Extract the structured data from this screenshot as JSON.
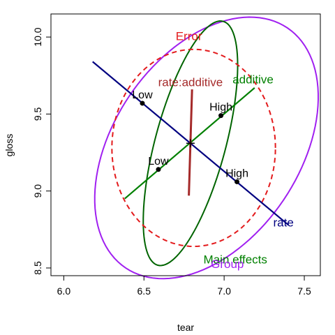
{
  "chart_data": {
    "type": "scatter",
    "title": "",
    "xlabel": "tear",
    "ylabel": "gloss",
    "xlim": [
      5.92,
      7.6
    ],
    "ylim": [
      8.45,
      10.15
    ],
    "xticks": [
      6.0,
      6.5,
      7.0,
      7.5
    ],
    "xtick_labels": [
      "6.0",
      "6.5",
      "7.0",
      "7.5"
    ],
    "yticks": [
      8.5,
      9.0,
      9.5,
      10.0
    ],
    "ytick_labels": [
      "8.5",
      "9.0",
      "9.5",
      "10.0"
    ],
    "grid": false,
    "center": {
      "x": 6.79,
      "y": 9.31
    },
    "ellipses": [
      {
        "name": "Group",
        "color": "#a020f0",
        "dash": false,
        "cx": 6.89,
        "cy": 9.28,
        "rx": 0.58,
        "ry": 0.94,
        "angle_deg": -34
      },
      {
        "name": "Main effects",
        "color": "#006400",
        "dash": false,
        "cx": 6.79,
        "cy": 9.31,
        "rx": 0.22,
        "ry": 0.82,
        "angle_deg": -15
      },
      {
        "name": "Error",
        "color": "#e31a1c",
        "dash": true,
        "cx": 6.81,
        "cy": 9.28,
        "rx": 0.51,
        "ry": 0.64,
        "angle_deg": 0
      }
    ],
    "effect_lines": [
      {
        "name": "rate",
        "color": "#000080",
        "from": [
          6.18,
          9.84
        ],
        "to": [
          7.4,
          8.78
        ]
      },
      {
        "name": "additive",
        "color": "#008000",
        "from": [
          6.38,
          8.95
        ],
        "to": [
          7.19,
          9.67
        ]
      },
      {
        "name": "rate:additive",
        "color": "#a52a2a",
        "from": [
          6.78,
          8.97
        ],
        "to": [
          6.8,
          9.66
        ]
      }
    ],
    "points": [
      {
        "label": "Low",
        "series": "rate",
        "x": 6.49,
        "y": 9.57,
        "color": "#000000"
      },
      {
        "label": "High",
        "series": "rate",
        "x": 7.08,
        "y": 9.06,
        "color": "#000000"
      },
      {
        "label": "Low",
        "series": "additive",
        "x": 6.59,
        "y": 9.14,
        "color": "#000000"
      },
      {
        "label": "High",
        "series": "additive",
        "x": 6.98,
        "y": 9.49,
        "color": "#000000"
      }
    ],
    "annotations": [
      {
        "text": "Error",
        "x": 6.78,
        "y": 9.98,
        "color": "#e31a1c"
      },
      {
        "text": "rate:additive",
        "x": 6.79,
        "y": 9.68,
        "color": "#a52a2a"
      },
      {
        "text": "additive",
        "x": 7.18,
        "y": 9.7,
        "color": "#008000"
      },
      {
        "text": "rate",
        "x": 7.37,
        "y": 8.77,
        "color": "#000080"
      },
      {
        "text": "Main effects",
        "x": 7.07,
        "y": 8.53,
        "color": "#008000"
      },
      {
        "text": "Group",
        "x": 7.02,
        "y": 8.5,
        "color": "#a020f0"
      }
    ]
  }
}
